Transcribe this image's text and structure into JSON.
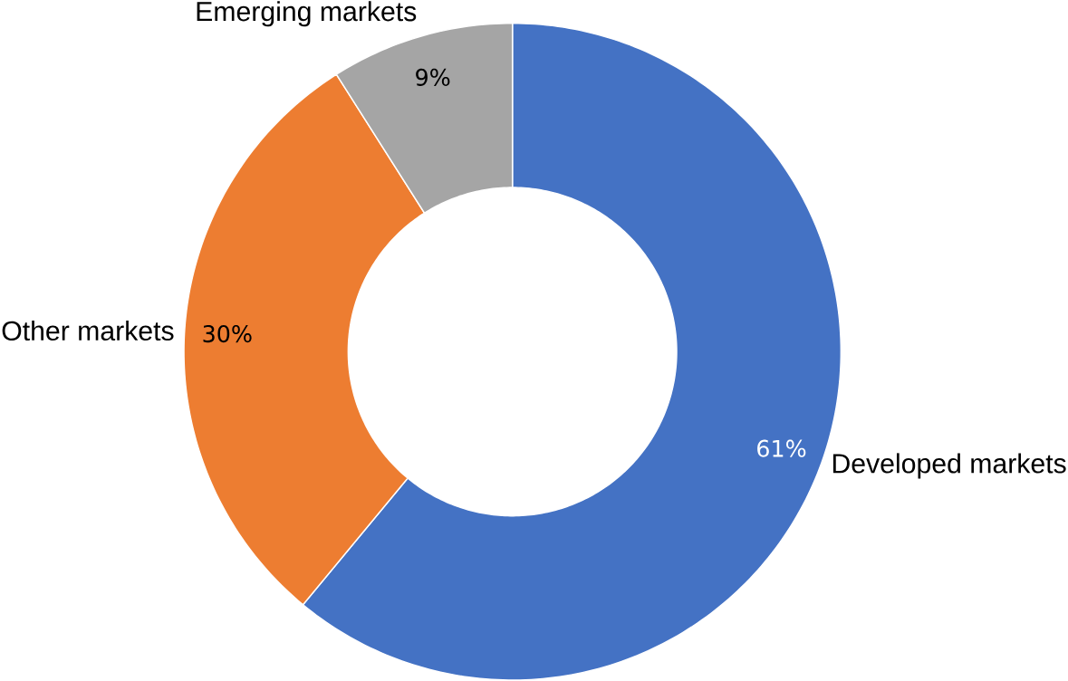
{
  "chart_data": {
    "type": "donut",
    "categories": [
      "Developed markets",
      "Other markets",
      "Emerging markets"
    ],
    "values": [
      61,
      30,
      9
    ],
    "colors": [
      "#4472c4",
      "#ed7d31",
      "#a5a5a5"
    ],
    "value_labels": [
      "61%",
      "30%",
      "9%"
    ]
  }
}
